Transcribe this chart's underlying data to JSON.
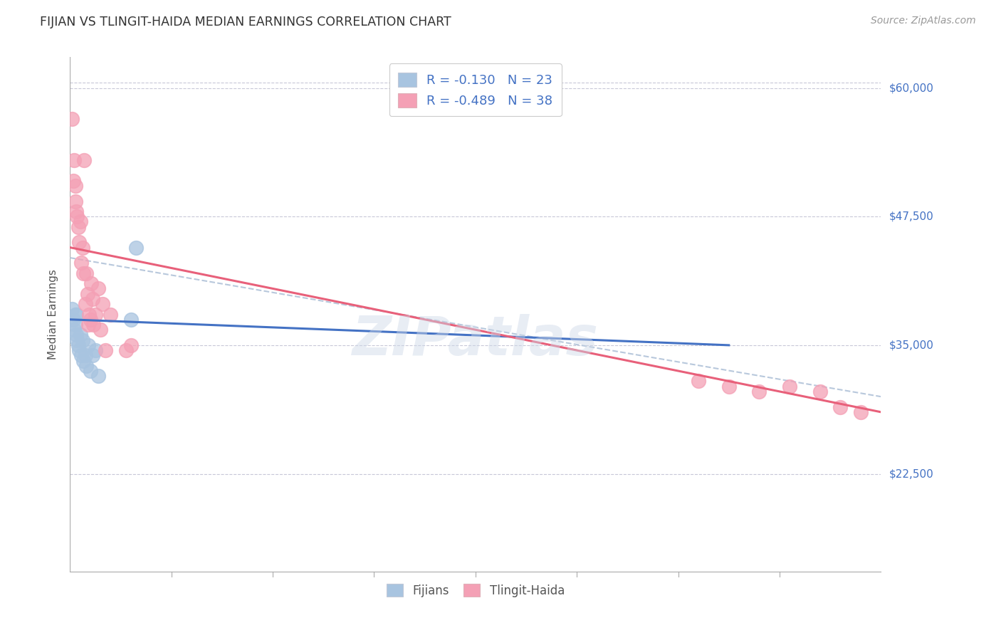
{
  "title": "FIJIAN VS TLINGIT-HAIDA MEDIAN EARNINGS CORRELATION CHART",
  "source": "Source: ZipAtlas.com",
  "ylabel": "Median Earnings",
  "xlim": [
    0.0,
    0.8
  ],
  "ylim": [
    13000,
    63000
  ],
  "watermark": "ZIPatlas",
  "fijian_color": "#a8c4e0",
  "tlingit_color": "#f4a0b5",
  "fijian_line_color": "#4472c4",
  "tlingit_line_color": "#e8607a",
  "combined_line_color": "#b8c8dc",
  "legend_r_fijian": "R = -0.130",
  "legend_n_fijian": "N = 23",
  "legend_r_tlingit": "R = -0.489",
  "legend_n_tlingit": "N = 38",
  "fijian_x": [
    0.002,
    0.003,
    0.004,
    0.005,
    0.005,
    0.006,
    0.006,
    0.007,
    0.008,
    0.009,
    0.01,
    0.011,
    0.012,
    0.013,
    0.015,
    0.016,
    0.018,
    0.02,
    0.022,
    0.025,
    0.028,
    0.06,
    0.065
  ],
  "fijian_y": [
    38500,
    37500,
    36500,
    38000,
    37000,
    36000,
    38000,
    35500,
    35000,
    34500,
    36000,
    34000,
    35500,
    33500,
    34000,
    33000,
    35000,
    32500,
    34000,
    34500,
    32000,
    37500,
    44500
  ],
  "tlingit_x": [
    0.002,
    0.003,
    0.004,
    0.005,
    0.005,
    0.006,
    0.007,
    0.008,
    0.009,
    0.01,
    0.011,
    0.012,
    0.013,
    0.014,
    0.015,
    0.016,
    0.017,
    0.018,
    0.019,
    0.02,
    0.021,
    0.022,
    0.023,
    0.025,
    0.028,
    0.03,
    0.032,
    0.035,
    0.04,
    0.055,
    0.06,
    0.62,
    0.65,
    0.68,
    0.71,
    0.74,
    0.76,
    0.78
  ],
  "tlingit_y": [
    57000,
    51000,
    53000,
    49000,
    50500,
    48000,
    47500,
    46500,
    45000,
    47000,
    43000,
    44500,
    42000,
    53000,
    39000,
    42000,
    40000,
    37000,
    38000,
    37500,
    41000,
    39500,
    37000,
    38000,
    40500,
    36500,
    39000,
    34500,
    38000,
    34500,
    35000,
    31500,
    31000,
    30500,
    31000,
    30500,
    29000,
    28500
  ],
  "fijian_line_x": [
    0.0,
    0.65
  ],
  "fijian_line_y": [
    37500,
    35000
  ],
  "tlingit_line_x": [
    0.0,
    0.8
  ],
  "tlingit_line_y": [
    44500,
    28500
  ],
  "combined_line_x": [
    0.0,
    0.8
  ],
  "combined_line_y": [
    43500,
    30000
  ]
}
